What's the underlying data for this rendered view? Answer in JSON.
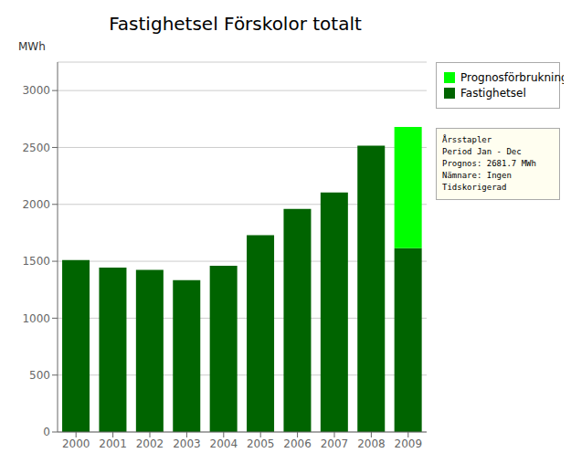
{
  "chart_data": {
    "type": "bar",
    "title": "Fastighetsel Förskolor totalt",
    "y_label": "MWh",
    "categories": [
      "2000",
      "2001",
      "2002",
      "2003",
      "2004",
      "2005",
      "2006",
      "2007",
      "2008",
      "2009"
    ],
    "series": [
      {
        "name": "Fastighetsel",
        "color": "#006400",
        "values": [
          1510,
          1445,
          1425,
          1335,
          1460,
          1730,
          1960,
          2105,
          2515,
          1615
        ]
      },
      {
        "name": "Prognosförbrukning",
        "color": "#00FF00",
        "values": [
          null,
          null,
          null,
          null,
          null,
          null,
          null,
          null,
          null,
          1065
        ]
      }
    ],
    "stacked": true,
    "ylim": [
      0,
      3250
    ],
    "yticks": [
      0,
      500,
      1000,
      1500,
      2000,
      2500,
      3000
    ],
    "grid": true,
    "legend": "right",
    "annotations": [
      "Årsstapler",
      "Period Jan - Dec",
      "Prognos: 2681.7 MWh",
      "Nämnare: Ingen",
      "Tidskorigerad"
    ]
  }
}
